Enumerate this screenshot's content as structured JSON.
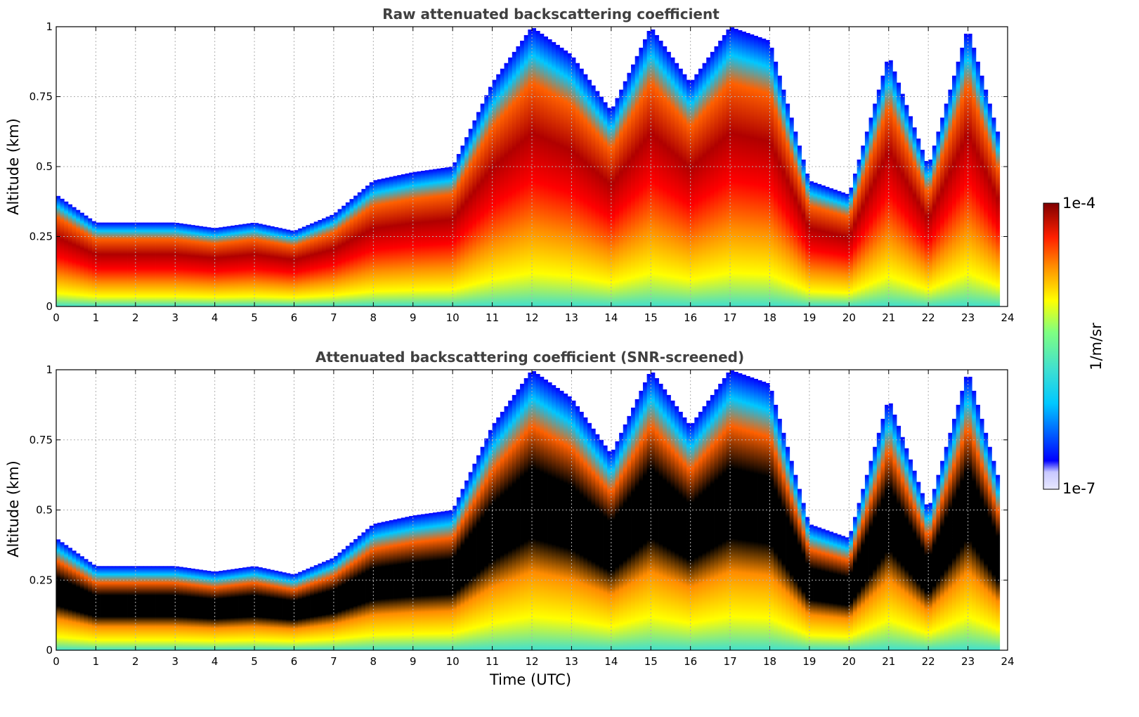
{
  "figure": {
    "time_axis_label": "Time (UTC)"
  },
  "colorbar": {
    "label": "1/m/sr",
    "max_label": "1e-4",
    "min_label": "1e-7",
    "scale": "log",
    "range": [
      1e-07,
      0.0001
    ],
    "colormap": "jet",
    "colors": [
      "#e8e8ff",
      "#0000ff",
      "#00c8ff",
      "#40e0d0",
      "#ffff00",
      "#ff8c00",
      "#ff0000",
      "#800000"
    ]
  },
  "chart_data": [
    {
      "type": "heatmap",
      "title": "Raw attenuated backscattering coefficient",
      "xlabel": "",
      "ylabel": "Altitude (km)",
      "xlim": [
        0,
        24
      ],
      "ylim": [
        0,
        1
      ],
      "xticks": [
        "0",
        "1",
        "2",
        "3",
        "4",
        "5",
        "6",
        "7",
        "8",
        "9",
        "10",
        "11",
        "12",
        "13",
        "14",
        "15",
        "16",
        "17",
        "18",
        "19",
        "20",
        "21",
        "22",
        "23",
        "24"
      ],
      "yticks": [
        "0",
        "0.25",
        "0.5",
        "0.75",
        "1"
      ],
      "grid": true,
      "data_end_hour": 23.8,
      "mixing_layer_top_km": {
        "hours": [
          0,
          1,
          2,
          3,
          4,
          5,
          6,
          7,
          8,
          9,
          10,
          11,
          12,
          13,
          14,
          15,
          16,
          17,
          18,
          19,
          20,
          21,
          22,
          23,
          23.8
        ],
        "values": [
          0.4,
          0.3,
          0.3,
          0.3,
          0.28,
          0.3,
          0.27,
          0.33,
          0.45,
          0.48,
          0.5,
          0.8,
          1.0,
          0.9,
          0.7,
          1.0,
          0.8,
          1.0,
          0.95,
          0.45,
          0.4,
          0.9,
          0.5,
          1.0,
          0.6
        ]
      }
    },
    {
      "type": "heatmap",
      "title": "Attenuated backscattering coefficient (SNR-screened)",
      "xlabel": "Time (UTC)",
      "ylabel": "Altitude (km)",
      "xlim": [
        0,
        24
      ],
      "ylim": [
        0,
        1
      ],
      "xticks": [
        "0",
        "1",
        "2",
        "3",
        "4",
        "5",
        "6",
        "7",
        "8",
        "9",
        "10",
        "11",
        "12",
        "13",
        "14",
        "15",
        "16",
        "17",
        "18",
        "19",
        "20",
        "21",
        "22",
        "23",
        "24"
      ],
      "yticks": [
        "0",
        "0.25",
        "0.5",
        "0.75",
        "1"
      ],
      "grid": true,
      "data_end_hour": 23.8,
      "saturated_color": "#000000"
    }
  ]
}
